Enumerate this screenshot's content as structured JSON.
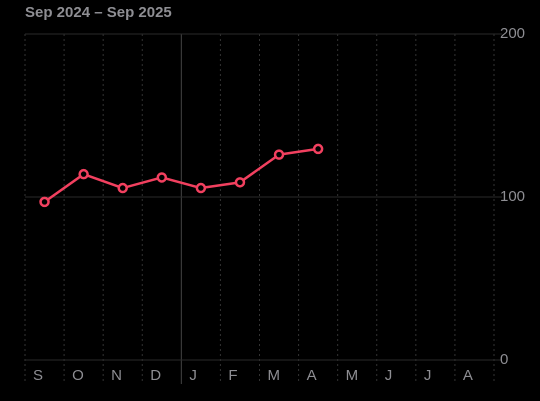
{
  "chart_data": {
    "type": "line",
    "title": "Sep 2024 – Sep 2025",
    "categories": [
      "S",
      "O",
      "N",
      "D",
      "J",
      "F",
      "M",
      "A",
      "M",
      "J",
      "J",
      "A"
    ],
    "series": [
      {
        "name": null,
        "color": "#f2405f",
        "values": [
          97,
          114,
          105.5,
          112,
          105.5,
          109,
          126,
          129.5,
          null,
          null,
          null,
          null
        ]
      }
    ],
    "ylim": [
      0,
      200
    ],
    "yticks": [
      0,
      100,
      200
    ],
    "grid": true
  }
}
